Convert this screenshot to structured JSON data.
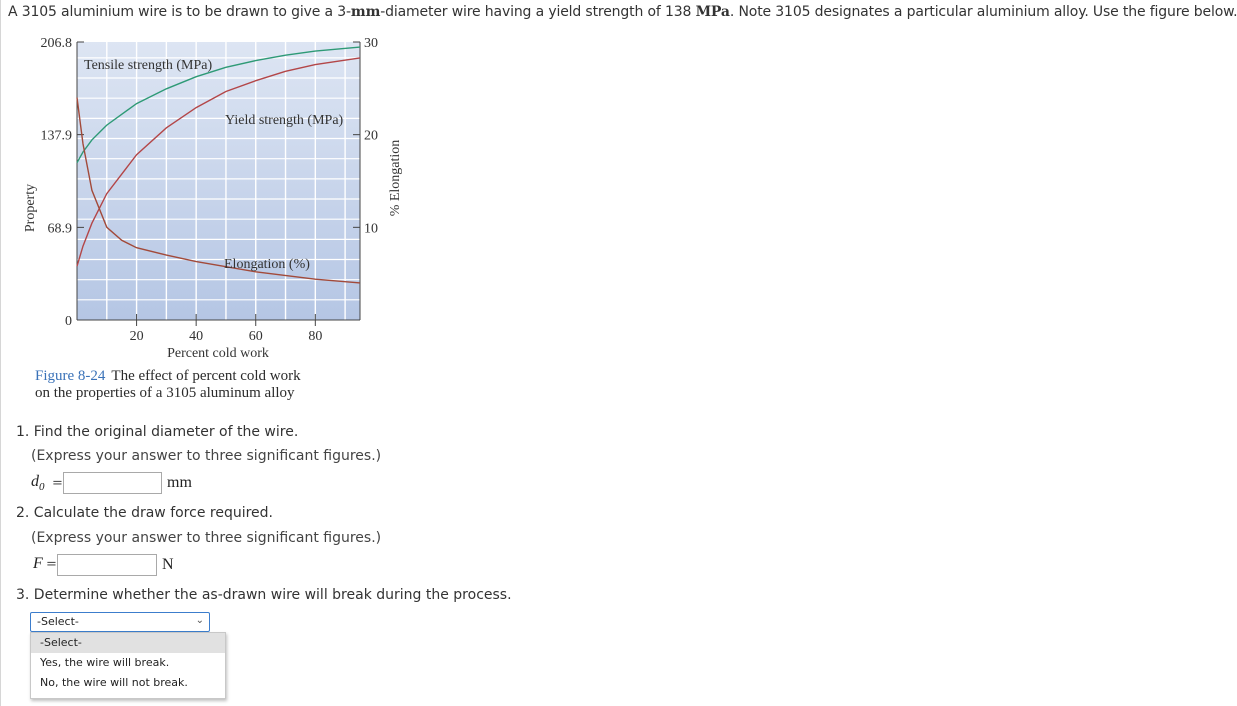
{
  "problem": {
    "intro_a": "A 3105 aluminium wire is to be drawn to give a 3-",
    "intro_mm": "mm",
    "intro_b": "-diameter wire having a yield strength of 138 ",
    "intro_mpa": "MPa",
    "intro_c": ". Note 3105 designates a particular aluminium alloy. Use the figure below."
  },
  "figure": {
    "caption_number": "Figure 8-24",
    "caption_line1": "The effect of percent cold work",
    "caption_line2": "on the properties of a 3105 aluminum alloy"
  },
  "chart_data": {
    "type": "line",
    "xlabel": "Percent cold work",
    "ylabel": "Property",
    "y2label": "% Elongation",
    "xlim": [
      0,
      95
    ],
    "ylim": [
      0,
      206.8
    ],
    "y2lim": [
      0,
      30
    ],
    "x_ticks": [
      "20",
      "40",
      "60",
      "80"
    ],
    "y_ticks": [
      "0",
      "68.9",
      "137.9",
      "206.8"
    ],
    "y2_ticks": [
      "10",
      "20",
      "30"
    ],
    "grid": true,
    "series": [
      {
        "name": "Tensile strength (MPa)",
        "axis": "left",
        "color": "#2e9a76",
        "x": [
          0,
          2,
          5,
          10,
          15,
          20,
          30,
          40,
          50,
          60,
          70,
          80,
          95
        ],
        "y": [
          117,
          125,
          134,
          145,
          153,
          161,
          172,
          181,
          188,
          193,
          197,
          200,
          203
        ]
      },
      {
        "name": "Yield strength (MPa)",
        "axis": "left",
        "color": "#b34648",
        "x": [
          0,
          2,
          5,
          10,
          20,
          30,
          40,
          50,
          60,
          70,
          80,
          95
        ],
        "y": [
          40,
          55,
          72,
          94,
          123,
          143,
          158,
          170,
          178,
          185,
          190,
          195
        ]
      },
      {
        "name": "Elongation (%)",
        "axis": "right",
        "color": "#a24a3a",
        "x": [
          0,
          2,
          5,
          10,
          15,
          20,
          30,
          40,
          60,
          80,
          95
        ],
        "y": [
          24,
          19,
          14,
          10,
          8.6,
          7.8,
          7.0,
          6.3,
          5.2,
          4.4,
          4.0
        ]
      }
    ]
  },
  "questions": {
    "q1": {
      "text": "1. Find the original diameter of the wire.",
      "note": "(Express your answer to three significant figures.)",
      "var": "d",
      "sub": "0",
      "eq": "=",
      "value": "",
      "unit": "mm"
    },
    "q2": {
      "text": "2. Calculate the draw force required.",
      "note": "(Express your answer to three significant figures.)",
      "var": "F",
      "eq": "=",
      "value": "",
      "unit": "N"
    },
    "q3": {
      "text": "3. Determine whether the as-drawn wire will break during the process.",
      "selected": "-Select-",
      "options": [
        "-Select-",
        "Yes, the wire will break.",
        "No, the wire will not break."
      ]
    }
  }
}
